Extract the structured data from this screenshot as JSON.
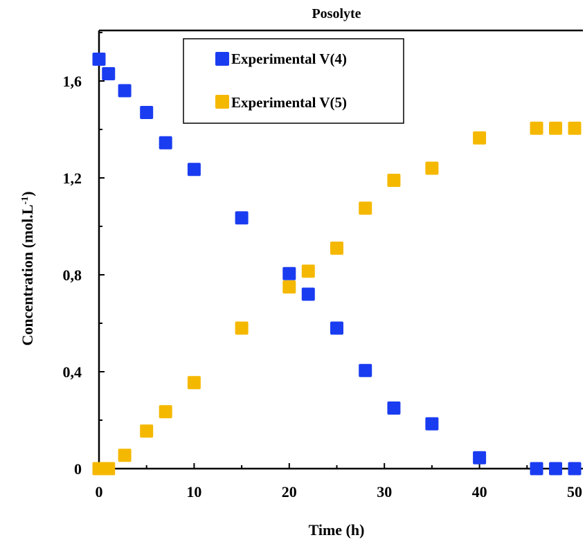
{
  "chart_data": {
    "type": "scatter",
    "title": "Posolyte",
    "xlabel": "Time (h)",
    "ylabel": "Concentration (mol.L",
    "ylabel_sup": "-1",
    "ylabel_end": ")",
    "xlim": [
      0,
      50
    ],
    "ylim": [
      0,
      1.6
    ],
    "x_ticks": [
      {
        "value": 0,
        "label": "0"
      },
      {
        "value": 10,
        "label": "10"
      },
      {
        "value": 20,
        "label": "20"
      },
      {
        "value": 30,
        "label": "30"
      },
      {
        "value": 40,
        "label": "40"
      },
      {
        "value": 50,
        "label": "50"
      }
    ],
    "y_ticks": [
      {
        "value": 0,
        "label": "0"
      },
      {
        "value": 0.4,
        "label": "0,4"
      },
      {
        "value": 0.8,
        "label": "0,8"
      },
      {
        "value": 1.2,
        "label": "1,2"
      },
      {
        "value": 1.6,
        "label": "1,6"
      }
    ],
    "grid": false,
    "legend_position": "top-center",
    "series": [
      {
        "name": "Experimental V(4)",
        "color": "#1a3cf0",
        "points": [
          {
            "x": 0,
            "y": 1.69
          },
          {
            "x": 1,
            "y": 1.63
          },
          {
            "x": 2.7,
            "y": 1.56
          },
          {
            "x": 5,
            "y": 1.47
          },
          {
            "x": 7,
            "y": 1.345
          },
          {
            "x": 10,
            "y": 1.235
          },
          {
            "x": 15,
            "y": 1.035
          },
          {
            "x": 20,
            "y": 0.805
          },
          {
            "x": 22,
            "y": 0.72
          },
          {
            "x": 25,
            "y": 0.58
          },
          {
            "x": 28,
            "y": 0.405
          },
          {
            "x": 31,
            "y": 0.25
          },
          {
            "x": 35,
            "y": 0.185
          },
          {
            "x": 40,
            "y": 0.045
          },
          {
            "x": 46,
            "y": 0
          },
          {
            "x": 48,
            "y": 0
          },
          {
            "x": 50,
            "y": 0
          }
        ]
      },
      {
        "name": "Experimental V(5)",
        "color": "#f5b800",
        "points": [
          {
            "x": 0,
            "y": 0
          },
          {
            "x": 1,
            "y": 0
          },
          {
            "x": 2.7,
            "y": 0.055
          },
          {
            "x": 5,
            "y": 0.155
          },
          {
            "x": 7,
            "y": 0.235
          },
          {
            "x": 10,
            "y": 0.355
          },
          {
            "x": 15,
            "y": 0.58
          },
          {
            "x": 20,
            "y": 0.75
          },
          {
            "x": 22,
            "y": 0.815
          },
          {
            "x": 25,
            "y": 0.91
          },
          {
            "x": 28,
            "y": 1.075
          },
          {
            "x": 31,
            "y": 1.19
          },
          {
            "x": 35,
            "y": 1.24
          },
          {
            "x": 40,
            "y": 1.365
          },
          {
            "x": 46,
            "y": 1.405
          },
          {
            "x": 48,
            "y": 1.405
          },
          {
            "x": 50,
            "y": 1.405
          }
        ]
      }
    ]
  }
}
